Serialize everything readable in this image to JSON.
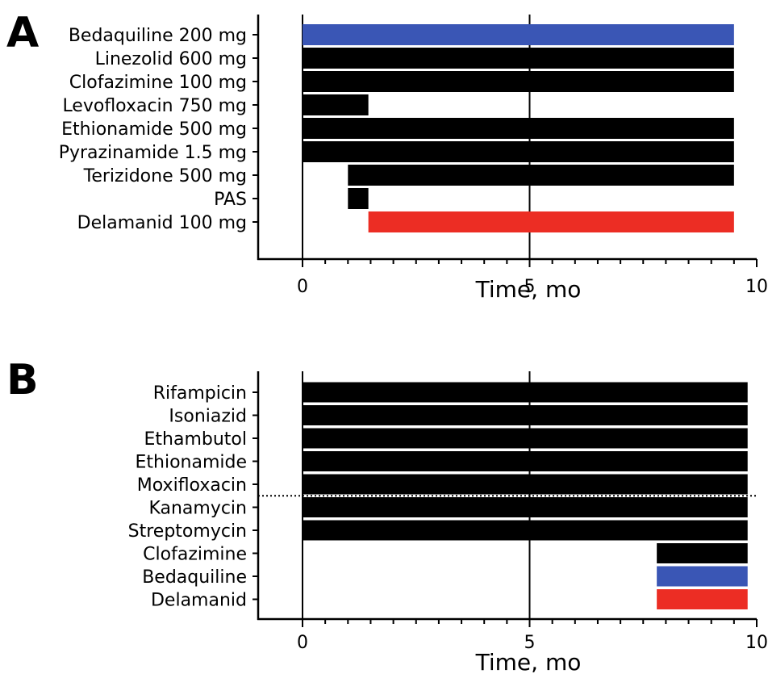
{
  "chart_data": [
    {
      "type": "bar",
      "orientation": "horizontal-timeline",
      "panel_label": "A",
      "xlabel": "Time, mo",
      "xlim": [
        0,
        10
      ],
      "xticks": [
        0,
        5,
        10
      ],
      "xtick_labels": [
        "0",
        "5",
        "10"
      ],
      "reference_lines": {
        "vertical_x": [
          0,
          5
        ],
        "horizontal_dotted_between": null
      },
      "colors": {
        "default": "#000000",
        "Bedaquiline": "#3a56b5",
        "Delamanid": "#ec2d24"
      },
      "bars": [
        {
          "label": "Bedaquiline 200 mg",
          "start": 0,
          "end": 9.5,
          "color": "#3a56b5"
        },
        {
          "label": "Linezolid 600 mg",
          "start": 0,
          "end": 9.5,
          "color": "#000000"
        },
        {
          "label": "Clofazimine 100 mg",
          "start": 0,
          "end": 9.5,
          "color": "#000000"
        },
        {
          "label": "Levofloxacin 750 mg",
          "start": 0,
          "end": 1.45,
          "color": "#000000"
        },
        {
          "label": "Ethionamide 500 mg",
          "start": 0,
          "end": 9.5,
          "color": "#000000"
        },
        {
          "label": "Pyrazinamide 1.5 mg",
          "start": 0,
          "end": 9.5,
          "color": "#000000"
        },
        {
          "label": "Terizidone 500 mg",
          "start": 1.0,
          "end": 9.5,
          "color": "#000000"
        },
        {
          "label": "PAS",
          "start": 1.0,
          "end": 1.45,
          "color": "#000000"
        },
        {
          "label": "Delamanid 100 mg",
          "start": 1.45,
          "end": 9.5,
          "color": "#ec2d24"
        }
      ]
    },
    {
      "type": "bar",
      "orientation": "horizontal-timeline",
      "panel_label": "B",
      "xlabel": "Time, mo",
      "xlim": [
        0,
        10
      ],
      "xticks": [
        0,
        5,
        10
      ],
      "xtick_labels": [
        "0",
        "5",
        "10"
      ],
      "reference_lines": {
        "vertical_x": [
          0,
          5
        ],
        "horizontal_dotted_between": [
          "Moxifloxacin",
          "Kanamycin"
        ]
      },
      "colors": {
        "default": "#000000",
        "Bedaquiline": "#3a56b5",
        "Delamanid": "#ec2d24"
      },
      "bars": [
        {
          "label": "Rifampicin",
          "start": 0,
          "end": 9.8,
          "color": "#000000"
        },
        {
          "label": "Isoniazid",
          "start": 0,
          "end": 9.8,
          "color": "#000000"
        },
        {
          "label": "Ethambutol",
          "start": 0,
          "end": 9.8,
          "color": "#000000"
        },
        {
          "label": "Ethionamide",
          "start": 0,
          "end": 9.8,
          "color": "#000000"
        },
        {
          "label": "Moxifloxacin",
          "start": 0,
          "end": 9.8,
          "color": "#000000"
        },
        {
          "label": "Kanamycin",
          "start": 0,
          "end": 9.8,
          "color": "#000000"
        },
        {
          "label": "Streptomycin",
          "start": 0,
          "end": 9.8,
          "color": "#000000"
        },
        {
          "label": "Clofazimine",
          "start": 7.8,
          "end": 9.8,
          "color": "#000000"
        },
        {
          "label": "Bedaquiline",
          "start": 7.8,
          "end": 9.8,
          "color": "#3a56b5"
        },
        {
          "label": "Delamanid",
          "start": 7.8,
          "end": 9.8,
          "color": "#ec2d24"
        }
      ]
    }
  ]
}
